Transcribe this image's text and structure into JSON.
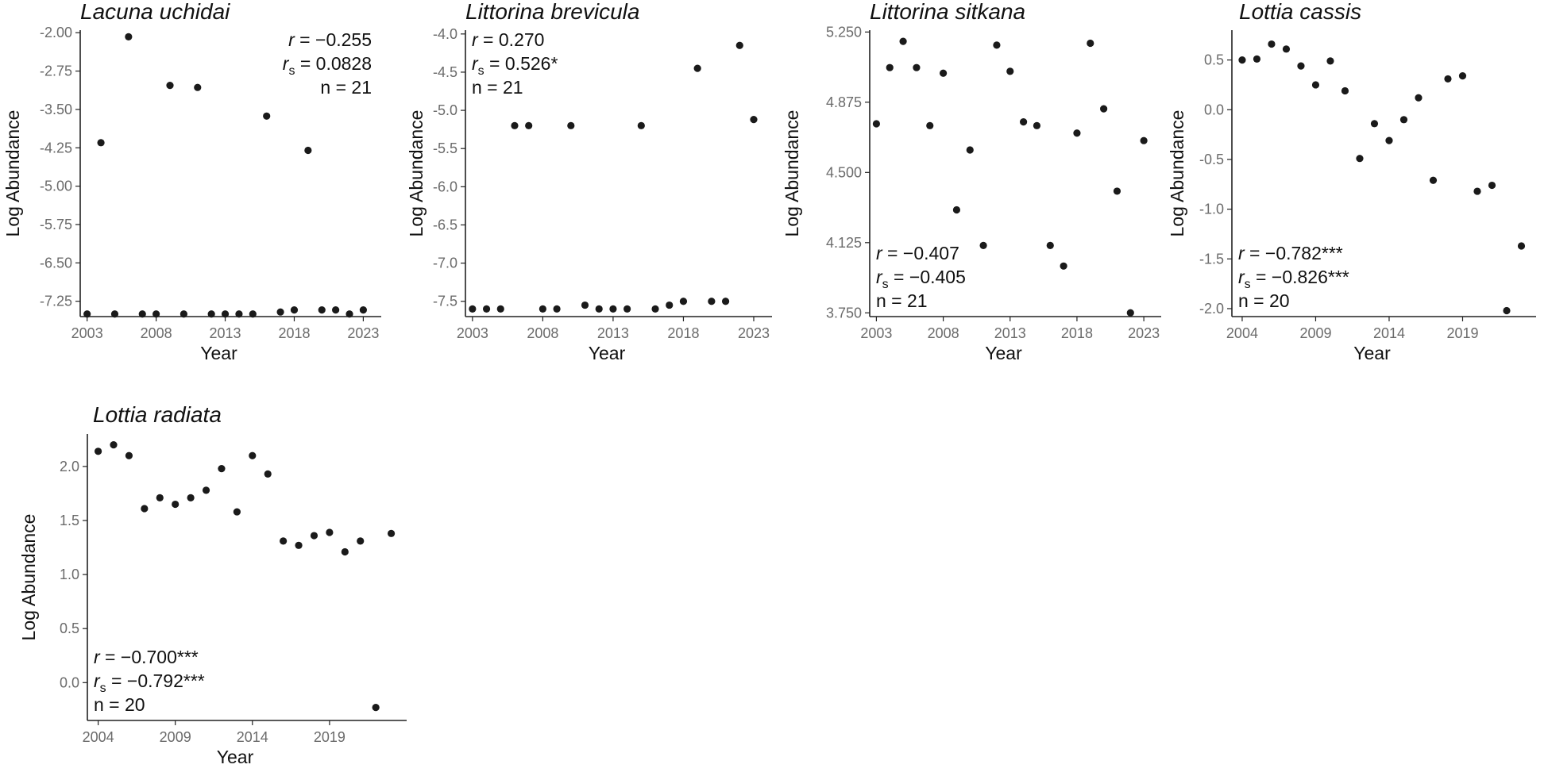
{
  "chart_data": [
    {
      "type": "scatter",
      "title": "Lacuna uchidai",
      "xlabel": "Year",
      "ylabel": "Log Abundance",
      "xlim": [
        2002.5,
        2024.3
      ],
      "ylim": [
        -7.55,
        -1.95
      ],
      "xticks": [
        2003,
        2008,
        2013,
        2018,
        2023
      ],
      "yticks": [
        -2.0,
        -2.75,
        -3.5,
        -4.25,
        -5.0,
        -5.75,
        -6.5,
        -7.25
      ],
      "ytick_labels": [
        "-2.00",
        "-2.75",
        "-3.50",
        "-4.25",
        "-5.00",
        "-5.75",
        "-6.50",
        "-7.25"
      ],
      "points": [
        [
          2003,
          -7.5
        ],
        [
          2004,
          -4.15
        ],
        [
          2005,
          -7.5
        ],
        [
          2006,
          -2.08
        ],
        [
          2007,
          -7.5
        ],
        [
          2008,
          -7.5
        ],
        [
          2009,
          -3.03
        ],
        [
          2010,
          -7.5
        ],
        [
          2011,
          -3.07
        ],
        [
          2012,
          -7.5
        ],
        [
          2013,
          -7.5
        ],
        [
          2014,
          -7.5
        ],
        [
          2015,
          -7.5
        ],
        [
          2016,
          -3.63
        ],
        [
          2017,
          -7.46
        ],
        [
          2018,
          -7.42
        ],
        [
          2019,
          -4.3
        ],
        [
          2020,
          -7.42
        ],
        [
          2021,
          -7.42
        ],
        [
          2022,
          -7.5
        ],
        [
          2023,
          -7.42
        ]
      ],
      "stats": {
        "r_label": "r",
        "r_value": " = −0.255",
        "rs_label": "r",
        "rs_sub": "s",
        "rs_value": " = 0.0828",
        "n_text": "n = 21"
      },
      "stats_anchor": "top-right"
    },
    {
      "type": "scatter",
      "title": "Littorina brevicula",
      "xlabel": "Year",
      "ylabel": "Log Abundance",
      "xlim": [
        2002.5,
        2024.3
      ],
      "ylim": [
        -7.7,
        -3.95
      ],
      "xticks": [
        2003,
        2008,
        2013,
        2018,
        2023
      ],
      "yticks": [
        -4.0,
        -4.5,
        -5.0,
        -5.5,
        -6.0,
        -6.5,
        -7.0,
        -7.5
      ],
      "ytick_labels": [
        "-4.0",
        "-4.5",
        "-5.0",
        "-5.5",
        "-6.0",
        "-6.5",
        "-7.0",
        "-7.5"
      ],
      "points": [
        [
          2003,
          -7.6
        ],
        [
          2004,
          -7.6
        ],
        [
          2005,
          -7.6
        ],
        [
          2006,
          -5.2
        ],
        [
          2007,
          -5.2
        ],
        [
          2008,
          -7.6
        ],
        [
          2009,
          -7.6
        ],
        [
          2010,
          -5.2
        ],
        [
          2011,
          -7.55
        ],
        [
          2012,
          -7.6
        ],
        [
          2013,
          -7.6
        ],
        [
          2014,
          -7.6
        ],
        [
          2015,
          -5.2
        ],
        [
          2016,
          -7.6
        ],
        [
          2017,
          -7.55
        ],
        [
          2018,
          -7.5
        ],
        [
          2019,
          -4.45
        ],
        [
          2020,
          -7.5
        ],
        [
          2021,
          -7.5
        ],
        [
          2022,
          -4.15
        ],
        [
          2023,
          -5.12
        ]
      ],
      "stats": {
        "r_label": "r",
        "r_value": " = 0.270",
        "rs_label": "r",
        "rs_sub": "s",
        "rs_value": " = 0.526*",
        "n_text": "n = 21"
      },
      "stats_anchor": "top-left"
    },
    {
      "type": "scatter",
      "title": "Littorina sitkana",
      "xlabel": "Year",
      "ylabel": "Log Abundance",
      "xlim": [
        2002.5,
        2024.3
      ],
      "ylim": [
        3.73,
        5.26
      ],
      "xticks": [
        2003,
        2008,
        2013,
        2018,
        2023
      ],
      "yticks": [
        3.75,
        4.125,
        4.5,
        4.875,
        5.25
      ],
      "ytick_labels": [
        "3.750",
        "4.125",
        "4.500",
        "4.875",
        "5.250"
      ],
      "points": [
        [
          2003,
          4.76
        ],
        [
          2004,
          5.06
        ],
        [
          2005,
          5.2
        ],
        [
          2006,
          5.06
        ],
        [
          2007,
          4.75
        ],
        [
          2008,
          5.03
        ],
        [
          2009,
          4.3
        ],
        [
          2010,
          4.62
        ],
        [
          2011,
          4.11
        ],
        [
          2012,
          5.18
        ],
        [
          2013,
          5.04
        ],
        [
          2014,
          4.77
        ],
        [
          2015,
          4.75
        ],
        [
          2016,
          4.11
        ],
        [
          2017,
          4.0
        ],
        [
          2018,
          4.71
        ],
        [
          2019,
          5.19
        ],
        [
          2020,
          4.84
        ],
        [
          2021,
          4.4
        ],
        [
          2022,
          3.75
        ],
        [
          2023,
          4.67
        ]
      ],
      "stats": {
        "r_label": "r",
        "r_value": " = −0.407",
        "rs_label": "r",
        "rs_sub": "s",
        "rs_value": " = −0.405",
        "n_text": "n = 21"
      },
      "stats_anchor": "bottom-left"
    },
    {
      "type": "scatter",
      "title": "Lottia cassis",
      "xlabel": "Year",
      "ylabel": "Log Abundance",
      "xlim": [
        2003.3,
        2024.0
      ],
      "ylim": [
        -2.08,
        0.8
      ],
      "xticks": [
        2004,
        2009,
        2014,
        2019
      ],
      "yticks": [
        0.5,
        0.0,
        -0.5,
        -1.0,
        -1.5,
        -2.0
      ],
      "ytick_labels": [
        "0.5",
        "0.0",
        "-0.5",
        "-1.0",
        "-1.5",
        "-2.0"
      ],
      "points": [
        [
          2004,
          0.5
        ],
        [
          2005,
          0.51
        ],
        [
          2006,
          0.66
        ],
        [
          2007,
          0.61
        ],
        [
          2008,
          0.44
        ],
        [
          2009,
          0.25
        ],
        [
          2010,
          0.49
        ],
        [
          2011,
          0.19
        ],
        [
          2012,
          -0.49
        ],
        [
          2013,
          -0.14
        ],
        [
          2014,
          -0.31
        ],
        [
          2015,
          -0.1
        ],
        [
          2016,
          0.12
        ],
        [
          2017,
          -0.71
        ],
        [
          2018,
          0.31
        ],
        [
          2019,
          0.34
        ],
        [
          2020,
          -0.82
        ],
        [
          2021,
          -0.76
        ],
        [
          2022,
          -2.02
        ],
        [
          2023,
          -1.37
        ]
      ],
      "stats": {
        "r_label": "r",
        "r_value": " = −0.782***",
        "rs_label": "r",
        "rs_sub": "s",
        "rs_value": " = −0.826***",
        "n_text": "n = 20"
      },
      "stats_anchor": "bottom-left"
    },
    {
      "type": "scatter",
      "title": "Lottia radiata",
      "xlabel": "Year",
      "ylabel": "Log Abundance",
      "xlim": [
        2003.3,
        2024.0
      ],
      "ylim": [
        -0.35,
        2.3
      ],
      "xticks": [
        2004,
        2009,
        2014,
        2019
      ],
      "yticks": [
        2.0,
        1.5,
        1.0,
        0.5,
        0.0
      ],
      "ytick_labels": [
        "2.0",
        "1.5",
        "1.0",
        "0.5",
        "0.0"
      ],
      "points": [
        [
          2004,
          2.14
        ],
        [
          2005,
          2.2
        ],
        [
          2006,
          2.1
        ],
        [
          2007,
          1.61
        ],
        [
          2008,
          1.71
        ],
        [
          2009,
          1.65
        ],
        [
          2010,
          1.71
        ],
        [
          2011,
          1.78
        ],
        [
          2012,
          1.98
        ],
        [
          2013,
          1.58
        ],
        [
          2014,
          2.1
        ],
        [
          2015,
          1.93
        ],
        [
          2016,
          1.31
        ],
        [
          2017,
          1.27
        ],
        [
          2018,
          1.36
        ],
        [
          2019,
          1.39
        ],
        [
          2020,
          1.21
        ],
        [
          2021,
          1.31
        ],
        [
          2022,
          -0.23
        ],
        [
          2023,
          1.38
        ]
      ],
      "stats": {
        "r_label": "r",
        "r_value": " = −0.700***",
        "rs_label": "r",
        "rs_sub": "s",
        "rs_value": " = −0.792***",
        "n_text": "n = 20"
      },
      "stats_anchor": "bottom-left"
    }
  ]
}
